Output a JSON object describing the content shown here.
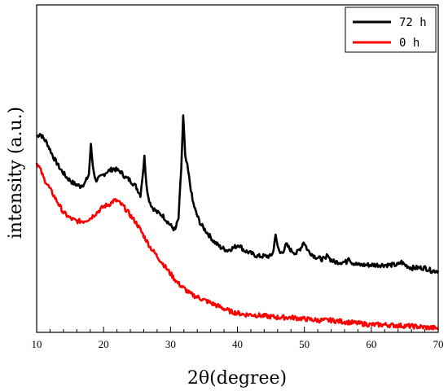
{
  "chart_data": {
    "type": "line",
    "title": "",
    "xlabel": "2θ(degree)",
    "ylabel": "intensity (a.u.)",
    "xlim": [
      10,
      70
    ],
    "ylim": [
      0,
      100
    ],
    "x_ticks": [
      "10",
      "20",
      "30",
      "40",
      "50",
      "60",
      "70"
    ],
    "y_ticks_shown": false,
    "grid": false,
    "legend_position": "top-right",
    "series": [
      {
        "name": "72 h",
        "color": "#000000",
        "x": [
          10,
          10.5,
          11.5,
          12.5,
          13.5,
          14.5,
          15.5,
          16.5,
          17.2,
          17.8,
          18.1,
          18.4,
          18.8,
          19.5,
          20.5,
          21.5,
          22.5,
          23.3,
          24,
          24.8,
          25.5,
          25.8,
          26.1,
          26.4,
          26.7,
          27.2,
          28,
          28.8,
          29.5,
          30.2,
          30.7,
          31.2,
          31.6,
          31.9,
          32.2,
          32.5,
          32.9,
          33.3,
          33.8,
          34.5,
          35.5,
          36.5,
          37.5,
          38.5,
          39.5,
          40.2,
          41,
          42,
          43,
          44,
          45,
          45.4,
          45.7,
          46,
          46.4,
          46.9,
          47.3,
          48,
          48.8,
          49.5,
          49.9,
          50.5,
          51.5,
          52.5,
          53.2,
          53.5,
          53.8,
          54.5,
          55.5,
          56.3,
          56.6,
          57,
          58,
          59,
          60,
          61,
          62,
          63,
          64,
          64.5,
          65,
          66,
          67,
          68,
          69,
          70
        ],
        "y": [
          66,
          67,
          64,
          59,
          55,
          52,
          50,
          49,
          50,
          53,
          63,
          56,
          51,
          52,
          54,
          55,
          54,
          52,
          51,
          49,
          46,
          52,
          59,
          50,
          45,
          42,
          40,
          39,
          37,
          35,
          34,
          38,
          55,
          73,
          59,
          56,
          50,
          44,
          40,
          36,
          33,
          30,
          28,
          27,
          28,
          29,
          27,
          26,
          25,
          25,
          25,
          27,
          33,
          28,
          26,
          27,
          29,
          27,
          26,
          28,
          30,
          27,
          25,
          24,
          24,
          26,
          24,
          23,
          23,
          23,
          25,
          23,
          22,
          22,
          22,
          22,
          22,
          22,
          22,
          23,
          22,
          21,
          21,
          21,
          20,
          20
        ]
      },
      {
        "name": "0 h",
        "color": "#ff0000",
        "x": [
          10,
          10.5,
          11,
          12,
          13,
          14,
          15,
          16,
          17,
          18,
          19,
          20,
          21,
          21.5,
          22,
          22.5,
          23,
          24,
          25,
          26,
          27,
          28,
          29,
          30,
          31,
          32,
          33,
          34,
          35,
          36,
          37,
          38,
          39,
          40,
          41,
          42,
          44,
          46,
          48,
          50,
          52,
          54,
          56,
          58,
          60,
          62,
          64,
          66,
          68,
          70
        ],
        "y": [
          57,
          55,
          52,
          48,
          44,
          40,
          38,
          37,
          37,
          38,
          40,
          42,
          43,
          44,
          44,
          43,
          42,
          39,
          36,
          32,
          28,
          25,
          22,
          19,
          16,
          14,
          12,
          11,
          10,
          9,
          8,
          7,
          6,
          5.5,
          5,
          5,
          4.5,
          4,
          4,
          3.5,
          3,
          3,
          2.5,
          2,
          1.5,
          1.5,
          1.2,
          1,
          0.6,
          0.3
        ]
      }
    ]
  }
}
